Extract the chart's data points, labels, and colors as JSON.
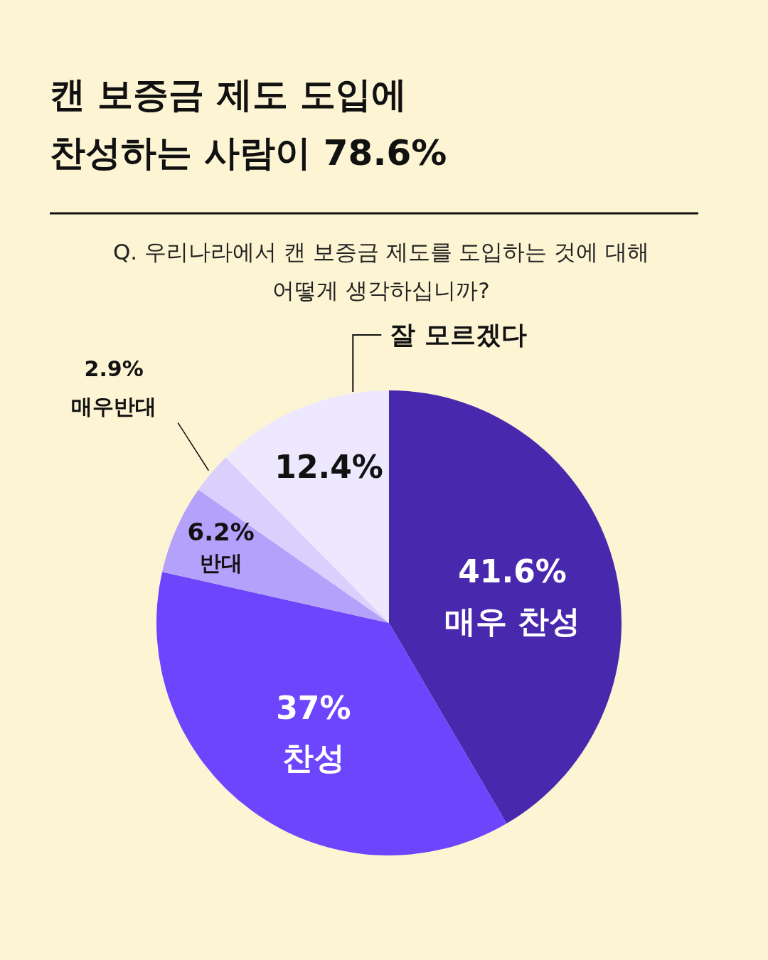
{
  "chart_data": {
    "type": "pie",
    "title": "캔 보증금 제도 도입에\n찬성하는 사람이 78.6%",
    "subtitle": "Q. 우리나라에서 캔 보증금 제도를 도입하는 것에 대해\n어떻게 생각하십니까?",
    "categories": [
      "매우 찬성",
      "찬성",
      "반대",
      "매우반대",
      "잘 모르겠다"
    ],
    "values": [
      41.6,
      37,
      6.2,
      2.9,
      12.4
    ],
    "value_labels": [
      "41.6%",
      "37%",
      "6.2%",
      "2.9%",
      "12.4%"
    ],
    "colors": [
      "#4828ad",
      "#6c45fc",
      "#b4a1fb",
      "#d9d0fd",
      "#ede8fd"
    ]
  }
}
